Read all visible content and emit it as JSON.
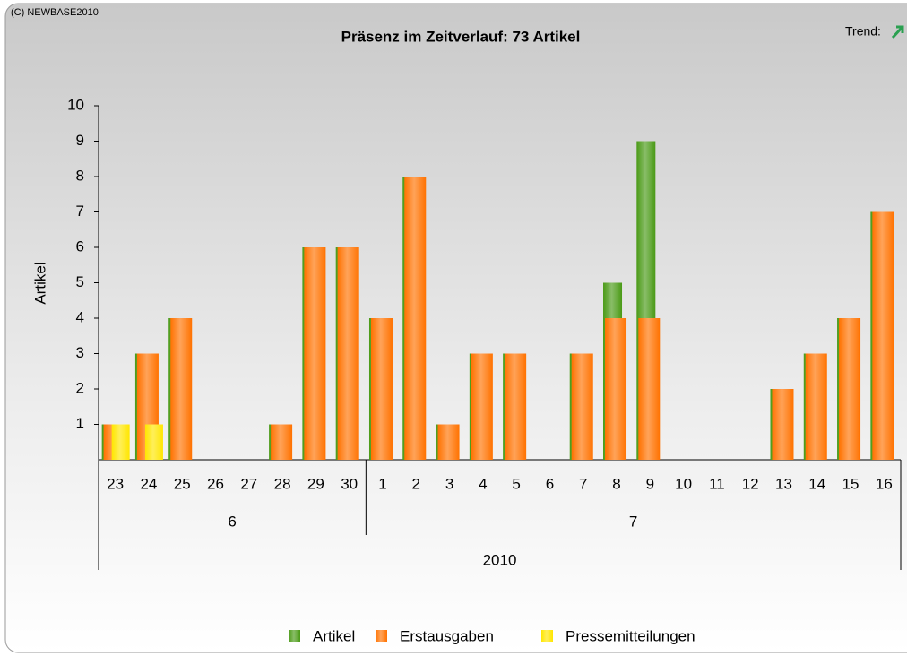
{
  "chart_data": {
    "type": "bar",
    "copyright": "(C) NEWBASE2010",
    "title": "Präsenz im Zeitverlauf: 73 Artikel",
    "trend_label": "Trend:",
    "y_label": "Artikel",
    "categories": [
      "23",
      "24",
      "25",
      "26",
      "27",
      "28",
      "29",
      "30",
      "1",
      "2",
      "3",
      "4",
      "5",
      "6",
      "7",
      "8",
      "9",
      "10",
      "11",
      "12",
      "13",
      "14",
      "15",
      "16"
    ],
    "groups": [
      {
        "label": "6",
        "count": 8
      },
      {
        "label": "7",
        "count": 16
      }
    ],
    "year": "2010",
    "series": [
      {
        "name": "Artikel",
        "color": "#4a9a16",
        "values": [
          1,
          3,
          4,
          0,
          0,
          1,
          6,
          6,
          4,
          8,
          1,
          3,
          3,
          0,
          3,
          5,
          9,
          0,
          0,
          0,
          2,
          3,
          4,
          7
        ]
      },
      {
        "name": "Erstausgaben",
        "color": "#ff7200",
        "values": [
          1,
          3,
          4,
          0,
          0,
          1,
          6,
          6,
          4,
          8,
          1,
          3,
          3,
          0,
          3,
          4,
          4,
          0,
          0,
          0,
          2,
          3,
          4,
          7
        ]
      },
      {
        "name": "Pressemitteilungen",
        "color": "#ffe600",
        "values": [
          1,
          1,
          0,
          0,
          0,
          0,
          0,
          0,
          0,
          0,
          0,
          0,
          0,
          0,
          0,
          0,
          0,
          0,
          0,
          0,
          0,
          0,
          0,
          0
        ]
      }
    ],
    "ylim": [
      0,
      10
    ],
    "yticks": [
      1,
      2,
      3,
      4,
      5,
      6,
      7,
      8,
      9,
      10
    ]
  }
}
